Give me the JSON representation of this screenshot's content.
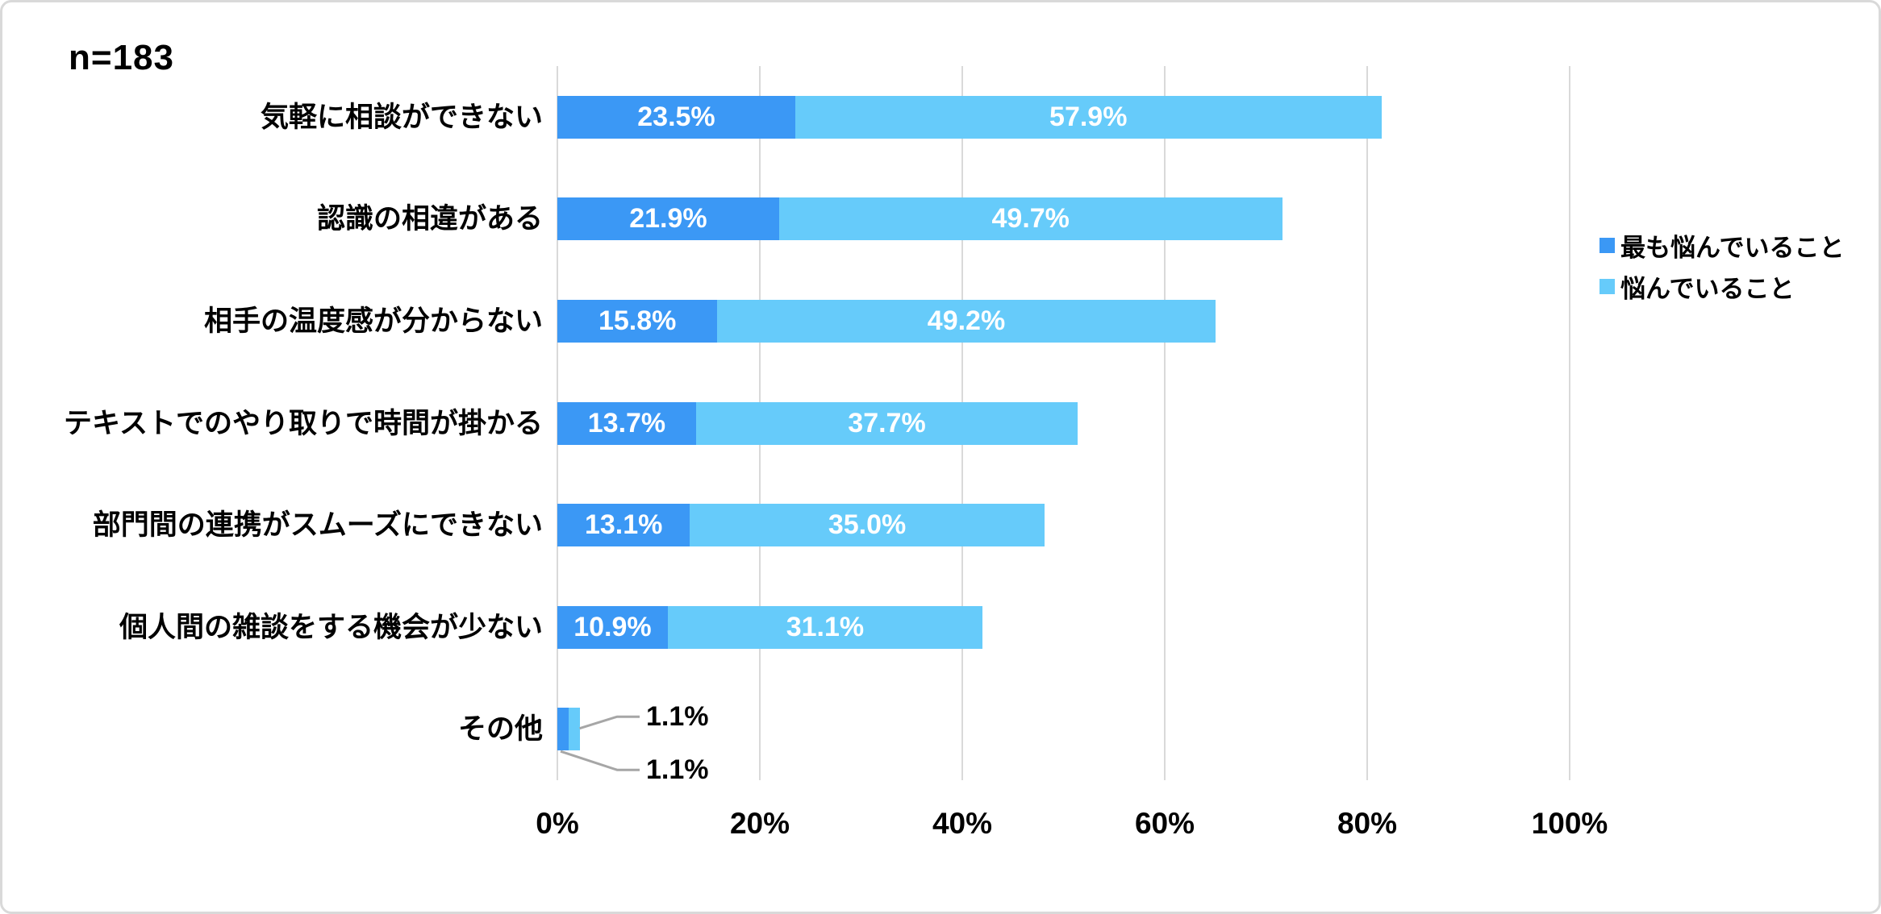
{
  "chart": {
    "n_label": "n=183",
    "colors": {
      "most_concern": "#3B98F5",
      "concern": "#66CBFA",
      "gridline": "#D9D9D9",
      "leader_line": "#A6A6A6",
      "text": "#000000",
      "value_text": "#FFFFFF",
      "border": "#D9D9D9",
      "background": "#FFFFFF"
    }
  },
  "chart_data": {
    "type": "bar",
    "orientation": "horizontal",
    "stacked": true,
    "title": "n=183",
    "categories": [
      "気軽に相談ができない",
      "認識の相違がある",
      "相手の温度感が分からない",
      "テキストでのやり取りで時間が掛かる",
      "部門間の連携がスムーズにできない",
      "個人間の雑談をする機会が少ない",
      "その他"
    ],
    "series": [
      {
        "name": "最も悩んでいること",
        "color_key": "most_concern",
        "values": [
          23.5,
          21.9,
          15.8,
          13.7,
          13.1,
          10.9,
          1.1
        ],
        "labels": [
          "23.5%",
          "21.9%",
          "15.8%",
          "13.7%",
          "13.1%",
          "10.9%",
          "1.1%"
        ]
      },
      {
        "name": "悩んでいること",
        "color_key": "concern",
        "values": [
          57.9,
          49.7,
          49.2,
          37.7,
          35.0,
          31.1,
          1.1
        ],
        "labels": [
          "57.9%",
          "49.7%",
          "49.2%",
          "37.7%",
          "35.0%",
          "31.1%",
          "1.1%"
        ]
      }
    ],
    "xlabel": "",
    "ylabel": "",
    "xlim": [
      0,
      100
    ],
    "xticks": [
      "0%",
      "20%",
      "40%",
      "60%",
      "80%",
      "100%"
    ],
    "grid": "vertical",
    "legend_position": "right",
    "callouts": [
      {
        "category_index": 6,
        "series": "悩んでいること",
        "label": "1.1%",
        "position": "top"
      },
      {
        "category_index": 6,
        "series": "最も悩んでいること",
        "label": "1.1%",
        "position": "bottom"
      }
    ]
  }
}
